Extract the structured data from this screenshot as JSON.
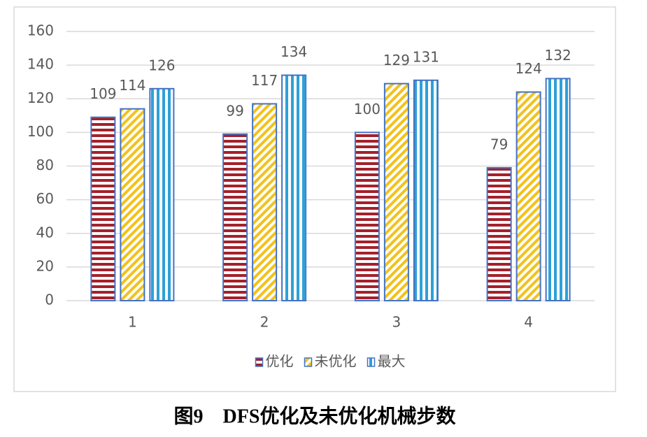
{
  "chart_data": {
    "type": "bar",
    "categories": [
      "1",
      "2",
      "3",
      "4"
    ],
    "series": [
      {
        "name": "优化",
        "color": "#a5202a",
        "pattern": "horizontal",
        "values": [
          109,
          99,
          100,
          79
        ]
      },
      {
        "name": "未优化",
        "color": "#f2c21b",
        "pattern": "diagonal",
        "values": [
          114,
          117,
          129,
          124
        ]
      },
      {
        "name": "最大",
        "color": "#2ea0d8",
        "pattern": "vertical",
        "values": [
          126,
          134,
          131,
          132
        ]
      }
    ],
    "edgecolor": "#4472c4",
    "ylim": [
      0,
      160
    ],
    "yticks": [
      0,
      20,
      40,
      60,
      80,
      100,
      120,
      140,
      160
    ],
    "grid": true,
    "legend": "bottom"
  },
  "caption": "图9　DFS优化及未优化机械步数"
}
